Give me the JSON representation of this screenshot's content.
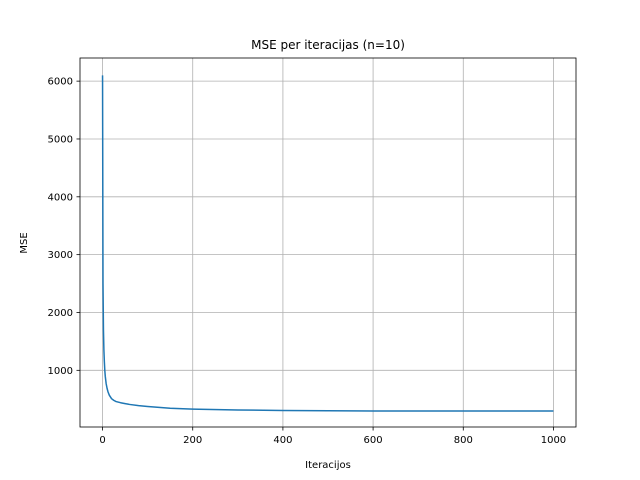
{
  "chart_data": {
    "type": "line",
    "title": "MSE per iteracijas (n=10)",
    "xlabel": "Iteracijos",
    "ylabel": "MSE",
    "xlim": [
      -50,
      1050
    ],
    "ylim": [
      20,
      6400
    ],
    "xticks": [
      0,
      200,
      400,
      600,
      800,
      1000
    ],
    "yticks": [
      1000,
      2000,
      3000,
      4000,
      5000,
      6000
    ],
    "grid": true,
    "series": [
      {
        "color": "#1f77b4",
        "x": [
          0,
          1,
          2,
          3,
          4,
          5,
          6,
          8,
          10,
          12,
          15,
          20,
          25,
          30,
          40,
          50,
          60,
          80,
          100,
          150,
          200,
          300,
          400,
          500,
          600,
          700,
          800,
          900,
          1000
        ],
        "y": [
          6100,
          2500,
          1700,
          1350,
          1150,
          1000,
          900,
          770,
          690,
          630,
          570,
          510,
          480,
          460,
          440,
          425,
          410,
          390,
          375,
          345,
          330,
          315,
          305,
          300,
          297,
          296,
          296,
          297,
          297
        ]
      }
    ]
  }
}
